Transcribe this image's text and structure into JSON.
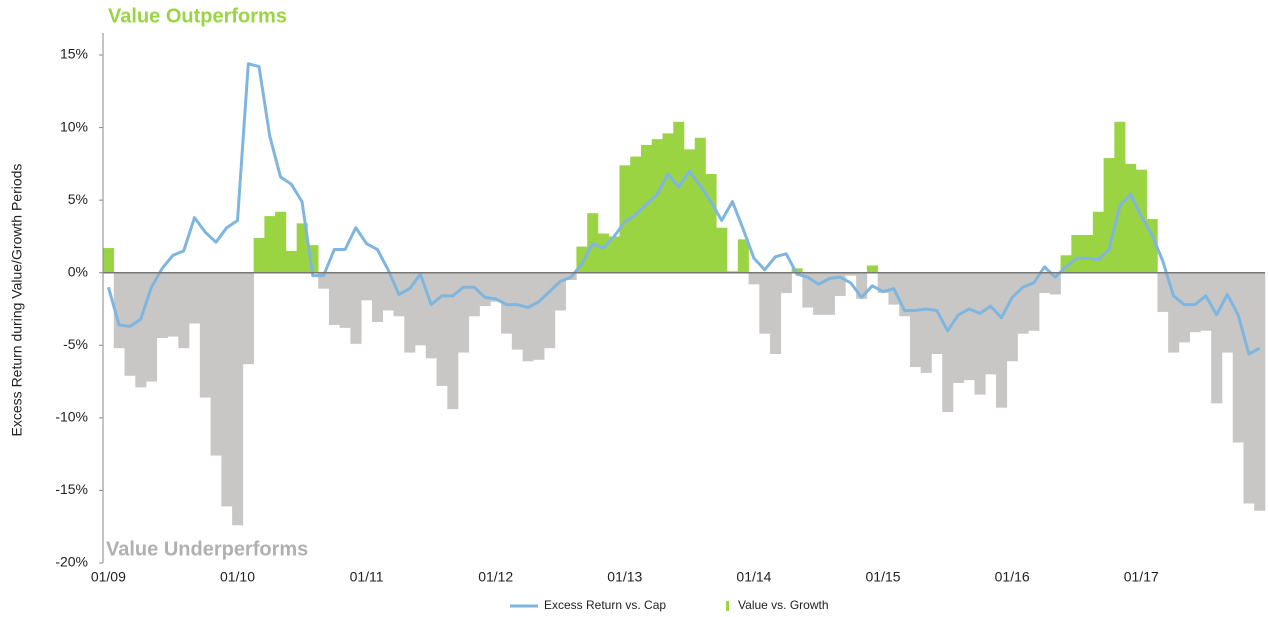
{
  "chart_data": {
    "type": "combo",
    "annotations": [
      "Value Outperforms",
      "Value Underperforms"
    ],
    "annotation_colors": [
      "#9bd443",
      "#b0b0b0"
    ],
    "y_label": "Excess Return during Value/Growth Periods",
    "categories": [
      "01/09",
      null,
      null,
      null,
      null,
      null,
      null,
      null,
      null,
      null,
      null,
      null,
      "01/10",
      null,
      null,
      null,
      null,
      null,
      null,
      null,
      null,
      null,
      null,
      null,
      "01/11",
      null,
      null,
      null,
      null,
      null,
      null,
      null,
      null,
      null,
      null,
      null,
      "01/12",
      null,
      null,
      null,
      null,
      null,
      null,
      null,
      null,
      null,
      null,
      null,
      "01/13",
      null,
      null,
      null,
      null,
      null,
      null,
      null,
      null,
      null,
      null,
      null,
      "01/14",
      null,
      null,
      null,
      null,
      null,
      null,
      null,
      null,
      null,
      null,
      null,
      "01/15",
      null,
      null,
      null,
      null,
      null,
      null,
      null,
      null,
      null,
      null,
      null,
      "01/16",
      null,
      null,
      null,
      null,
      null,
      null,
      null,
      null,
      null,
      null,
      null,
      "01/17",
      null,
      null,
      null,
      null,
      null,
      null,
      null,
      null,
      null,
      null,
      null
    ],
    "series": [
      {
        "name": "Excess Return vs. Cap",
        "type": "line",
        "color": "#7fb6df",
        "values": [
          -1.0,
          -3.6,
          -3.7,
          -3.2,
          -1.0,
          0.3,
          1.2,
          1.5,
          3.8,
          2.8,
          2.1,
          3.1,
          3.6,
          14.4,
          14.2,
          9.4,
          6.6,
          6.1,
          4.9,
          -0.2,
          -0.2,
          1.6,
          1.6,
          3.1,
          2.0,
          1.6,
          0.2,
          -1.5,
          -1.1,
          -0.1,
          -2.2,
          -1.6,
          -1.6,
          -1.0,
          -1.0,
          -1.7,
          -1.8,
          -2.2,
          -2.2,
          -2.4,
          -2.0,
          -1.3,
          -0.6,
          -0.3,
          0.6,
          2.0,
          1.7,
          2.5,
          3.5,
          4.0,
          4.7,
          5.4,
          6.8,
          5.9,
          7.0,
          6.0,
          4.9,
          3.6,
          4.9,
          3.0,
          1.0,
          0.2,
          1.1,
          1.3,
          -0.1,
          -0.3,
          -0.8,
          -0.4,
          -0.3,
          -0.7,
          -1.7,
          -0.9,
          -1.3,
          -1.1,
          -2.6,
          -2.6,
          -2.5,
          -2.6,
          -4.0,
          -2.9,
          -2.5,
          -2.8,
          -2.3,
          -3.1,
          -1.7,
          -1.0,
          -0.7,
          0.4,
          -0.3,
          0.4,
          1.0,
          1.0,
          0.9,
          1.6,
          4.6,
          5.4,
          3.9,
          2.6,
          0.8,
          -1.6,
          -2.2,
          -2.2,
          -1.6,
          -2.9,
          -1.5,
          -2.9,
          -5.6,
          -5.2
        ]
      },
      {
        "name": "Value vs. Growth",
        "type": "bar",
        "color": "#9bd443",
        "negative_color": "#c8c7c5",
        "values": [
          1.7,
          -5.2,
          -7.1,
          -7.9,
          -7.5,
          -4.5,
          -4.4,
          -5.2,
          -3.5,
          -8.6,
          -12.6,
          -16.1,
          -17.4,
          -6.3,
          2.4,
          3.9,
          4.2,
          1.5,
          3.4,
          1.9,
          -1.1,
          -3.6,
          -3.8,
          -4.9,
          -1.9,
          -3.4,
          -2.6,
          -3.0,
          -5.5,
          -5.0,
          -5.9,
          -7.8,
          -9.4,
          -5.5,
          -3.0,
          -2.3,
          -2.0,
          -4.2,
          -5.3,
          -6.1,
          -6.0,
          -5.2,
          -2.6,
          -0.5,
          1.8,
          4.1,
          2.7,
          2.5,
          7.4,
          8.0,
          8.8,
          9.2,
          9.6,
          10.4,
          8.5,
          9.3,
          6.8,
          3.1,
          0.1,
          2.3,
          -0.8,
          -4.2,
          -5.6,
          -1.4,
          0.3,
          -2.4,
          -2.9,
          -2.9,
          -1.6,
          -0.2,
          -1.8,
          0.5,
          -1.4,
          -2.2,
          -3.0,
          -6.5,
          -6.9,
          -5.6,
          -9.6,
          -7.6,
          -7.4,
          -8.4,
          -7.0,
          -9.3,
          -6.1,
          -4.2,
          -4.0,
          -1.4,
          -1.5,
          1.2,
          2.6,
          2.6,
          4.2,
          7.9,
          10.4,
          7.5,
          7.1,
          3.7,
          -2.7,
          -5.5,
          -4.8,
          -4.1,
          -4.0,
          -9.0,
          -5.5,
          -11.7,
          -15.9,
          -16.4
        ]
      }
    ],
    "ylim": [
      -20,
      15
    ],
    "yticks": [
      {
        "value": -20,
        "label": "-20%"
      },
      {
        "value": -15,
        "label": "-15%"
      },
      {
        "value": -10,
        "label": "-10%"
      },
      {
        "value": -5,
        "label": "-5%"
      },
      {
        "value": 0,
        "label": "0%"
      },
      {
        "value": 5,
        "label": "5%"
      },
      {
        "value": 10,
        "label": "10%"
      },
      {
        "value": 15,
        "label": "15%"
      }
    ],
    "grid": false
  }
}
